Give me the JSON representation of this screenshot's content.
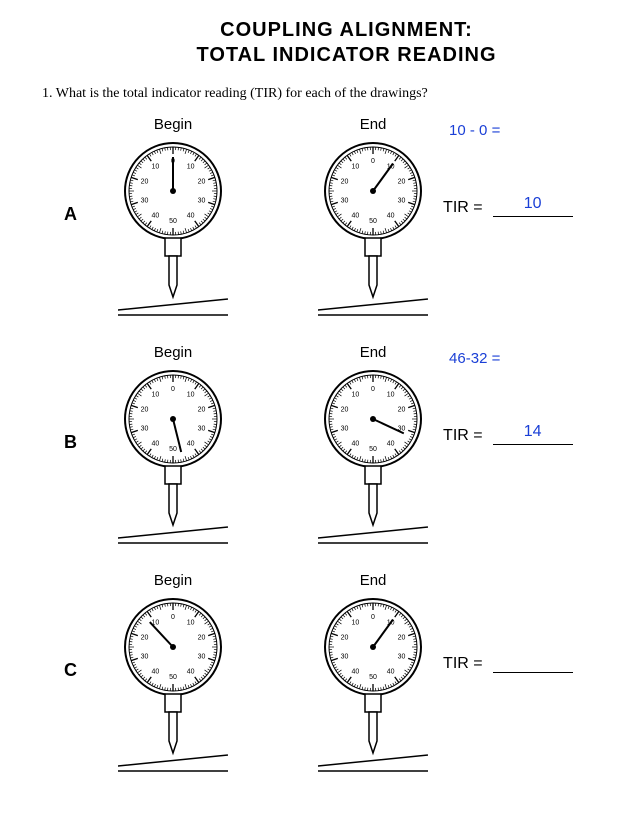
{
  "title_line1": "COUPLING ALIGNMENT:",
  "title_line2": "TOTAL INDICATOR READING",
  "question": "1.  What is the total indicator reading (TIR) for each of the drawings?",
  "headings": {
    "begin": "Begin",
    "end": "End"
  },
  "tir_label": "TIR =",
  "dial_labels": [
    "0",
    "10",
    "20",
    "30",
    "40",
    "50",
    "40",
    "30",
    "20",
    "10"
  ],
  "colors": {
    "ink": "#000000",
    "handwrite": "#1a3fd6",
    "bg": "#ffffff"
  },
  "gauge": {
    "stroke": "#000000",
    "fill": "#ffffff",
    "radius": 44,
    "label_fontsize": 7
  },
  "rows": [
    {
      "letter": "A",
      "begin_angle_deg": 0,
      "end_angle_deg": 36,
      "calc_text": "10 - 0 =",
      "tir_value": "10"
    },
    {
      "letter": "B",
      "begin_angle_deg": 166,
      "end_angle_deg": 115,
      "calc_text": "46-32 =",
      "tir_value": "14"
    },
    {
      "letter": "C",
      "begin_angle_deg": -43,
      "end_angle_deg": 36,
      "calc_text": "",
      "tir_value": ""
    }
  ]
}
